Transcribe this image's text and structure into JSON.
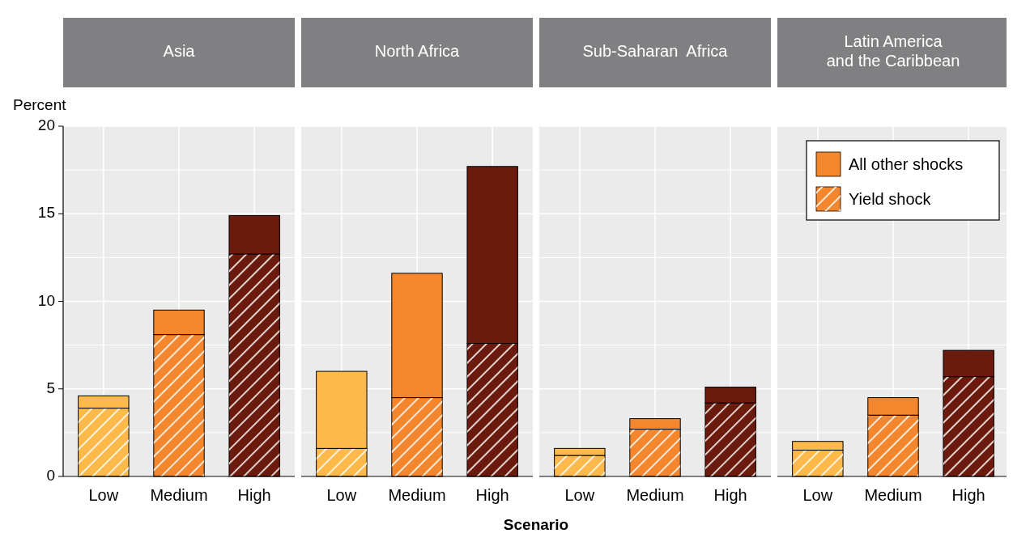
{
  "chart_data": [
    {
      "type": "bar",
      "title": "Asia",
      "ylabel": "Percent",
      "categories": [
        "Low",
        "Medium",
        "High"
      ],
      "stacked": true,
      "ylim": [
        0,
        20
      ],
      "yticks": [
        0,
        5,
        10,
        15,
        20
      ],
      "grid": true,
      "legend": false,
      "series": [
        {
          "colors": [
            "#fdb94a",
            "#f4862e",
            "#6b1a0e"
          ],
          "values": [
            3.9,
            8.1,
            12.7
          ]
        },
        {
          "colors": [
            "#fdb94a",
            "#f4862e",
            "#6b1a0e"
          ],
          "values": [
            0.7,
            1.4,
            2.2
          ]
        }
      ]
    },
    {
      "type": "bar",
      "title": "North Africa",
      "xlabel": "Scenario",
      "categories": [
        "Low",
        "Medium",
        "High"
      ],
      "stacked": true,
      "ylim": [
        0,
        20
      ],
      "yticks": [
        0,
        5,
        10,
        15,
        20
      ],
      "grid": true,
      "legend": false,
      "tick_labels": "x",
      "series": [
        {
          "colors": [
            "#fdb94a",
            "#f4862e",
            "#6b1a0e"
          ],
          "values": [
            1.6,
            4.5,
            7.6
          ]
        },
        {
          "colors": [
            "#fdb94a",
            "#f4862e",
            "#6b1a0e"
          ],
          "values": [
            4.4,
            7.1,
            10.1
          ]
        }
      ]
    },
    {
      "type": "bar",
      "title": "Sub-Saharan  Africa",
      "categories": [
        "Low",
        "Medium",
        "High"
      ],
      "stacked": true,
      "ylim": [
        0,
        20
      ],
      "yticks": [
        0,
        5,
        10,
        15,
        20
      ],
      "grid": true,
      "legend": false,
      "tick_labels": "x",
      "series": [
        {
          "colors": [
            "#fdb94a",
            "#f4862e",
            "#6b1a0e"
          ],
          "values": [
            1.2,
            2.7,
            4.2
          ]
        },
        {
          "colors": [
            "#fdb94a",
            "#f4862e",
            "#6b1a0e"
          ],
          "values": [
            0.4,
            0.6,
            0.9
          ]
        }
      ]
    },
    {
      "type": "bar",
      "title": "Latin America\nand the Caribbean",
      "categories": [
        "Low",
        "Medium",
        "High"
      ],
      "stacked": true,
      "ylim": [
        0,
        20
      ],
      "yticks": [
        0,
        5,
        10,
        15,
        20
      ],
      "grid": true,
      "legend": "top right",
      "tick_labels": "x",
      "series": [
        {
          "name": "Yield shock",
          "color": "#f4862e",
          "colors": [
            "#fdb94a",
            "#f4862e",
            "#6b1a0e"
          ],
          "values": [
            1.5,
            3.5,
            5.7
          ]
        },
        {
          "name": "All other shocks",
          "color": "#f4862e",
          "colors": [
            "#fdb94a",
            "#f4862e",
            "#6b1a0e"
          ],
          "values": [
            0.5,
            1.0,
            1.5
          ]
        }
      ]
    }
  ]
}
